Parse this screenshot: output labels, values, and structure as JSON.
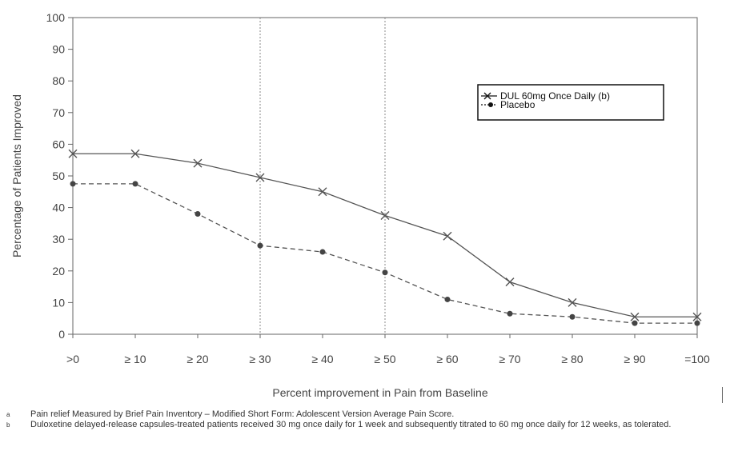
{
  "chart_data": {
    "type": "line",
    "xlabel": "Percent improvement in Pain from Baseline",
    "ylabel": "Percentage of Patients Improved",
    "categories": [
      ">0",
      "≥ 10",
      "≥ 20",
      "≥ 30",
      "≥ 40",
      "≥ 50",
      "≥ 60",
      "≥ 70",
      "≥ 80",
      "≥ 90",
      "=100"
    ],
    "ylim": [
      0,
      100
    ],
    "yticks": [
      0,
      10,
      20,
      30,
      40,
      50,
      60,
      70,
      80,
      90,
      100
    ],
    "reference_lines_at": [
      "≥ 30",
      "≥ 50"
    ],
    "legend_position": "top-right",
    "series": [
      {
        "name": "DUL 60mg Once Daily (b)",
        "marker": "x",
        "line": "solid",
        "color": "#555555",
        "values": [
          57,
          57,
          54,
          49.5,
          45,
          37.5,
          31,
          16.5,
          10,
          5.5,
          5.5
        ]
      },
      {
        "name": "Placebo",
        "marker": "circle",
        "line": "dashed",
        "color": "#555555",
        "values": [
          47.5,
          47.5,
          38,
          28,
          26,
          19.5,
          11,
          6.5,
          5.5,
          3.5,
          3.5
        ]
      }
    ]
  },
  "footnotes": [
    {
      "mark": "a",
      "text": "Pain relief Measured by Brief Pain Inventory – Modified Short Form: Adolescent Version Average Pain Score."
    },
    {
      "mark": "b",
      "text": "Duloxetine delayed-release capsules-treated patients received 30 mg once daily for 1 week and subsequently titrated to 60 mg once daily for 12 weeks, as tolerated."
    }
  ]
}
